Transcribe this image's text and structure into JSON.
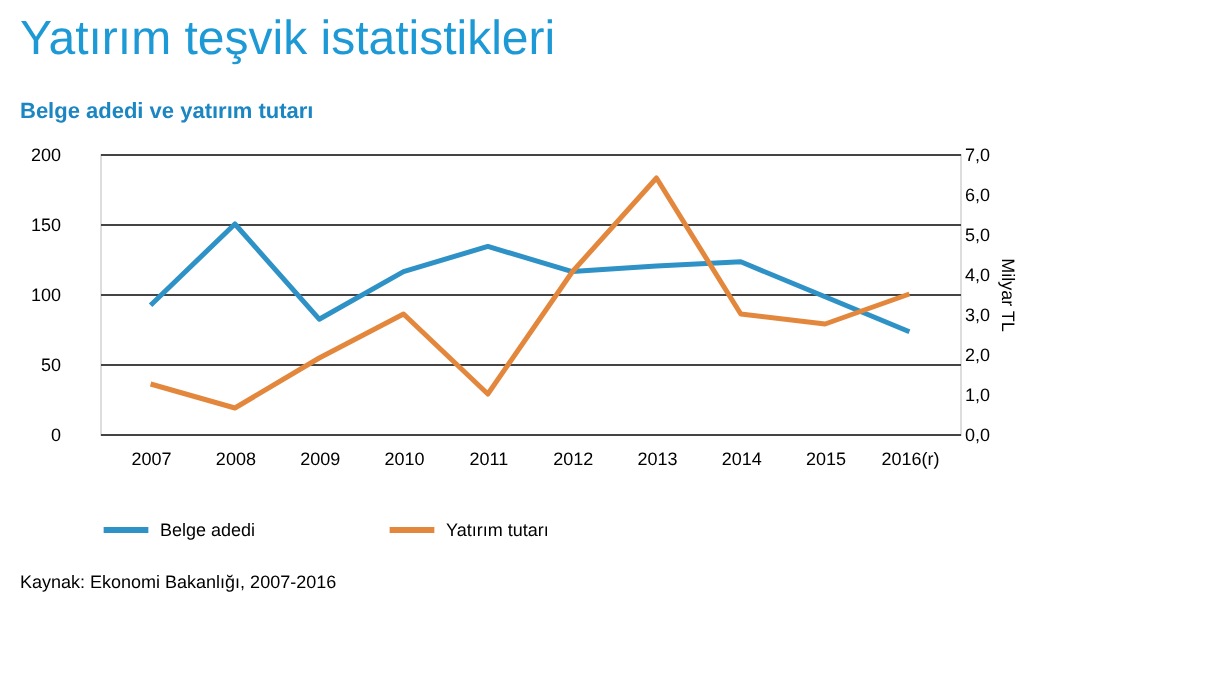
{
  "chart_data": {
    "type": "line",
    "title": "Yatırım teşvik istatistikleri",
    "subtitle": "Belge adedi ve yatırım tutarı",
    "y2label": "Milyar TL",
    "categories": [
      "2007",
      "2008",
      "2009",
      "2010",
      "2011",
      "2012",
      "2013",
      "2014",
      "2015",
      "2016(r)"
    ],
    "series": [
      {
        "name": "Belge adedi",
        "color": "#2e92c6",
        "values": [
          92,
          150,
          82,
          116,
          134,
          116,
          120,
          123,
          98,
          73
        ]
      },
      {
        "name": "Yatırım tutarı",
        "color": "#e3873d",
        "axis": "y2",
        "values": [
          1.25,
          0.65,
          1.9,
          3.0,
          1.0,
          4.05,
          6.4,
          3.0,
          2.75,
          3.5
        ]
      }
    ],
    "ylim": [
      0,
      200
    ],
    "yticks": [
      0,
      50,
      100,
      150,
      200
    ],
    "y2lim": [
      0,
      7
    ],
    "y2ticks": [
      {
        "value": 0,
        "label": "0,0"
      },
      {
        "value": 1,
        "label": "1,0"
      },
      {
        "value": 2,
        "label": "2,0"
      },
      {
        "value": 3,
        "label": "3,0"
      },
      {
        "value": 4,
        "label": "4,0"
      },
      {
        "value": 5,
        "label": "5,0"
      },
      {
        "value": 6,
        "label": "6,0"
      },
      {
        "value": 7,
        "label": "7,0"
      }
    ],
    "grid": "y",
    "legend": "bottom",
    "marker": "none",
    "line_style": "solid",
    "annotations": [
      "Kaynak: Ekonomi Bakanlığı, 2007-2016"
    ]
  }
}
